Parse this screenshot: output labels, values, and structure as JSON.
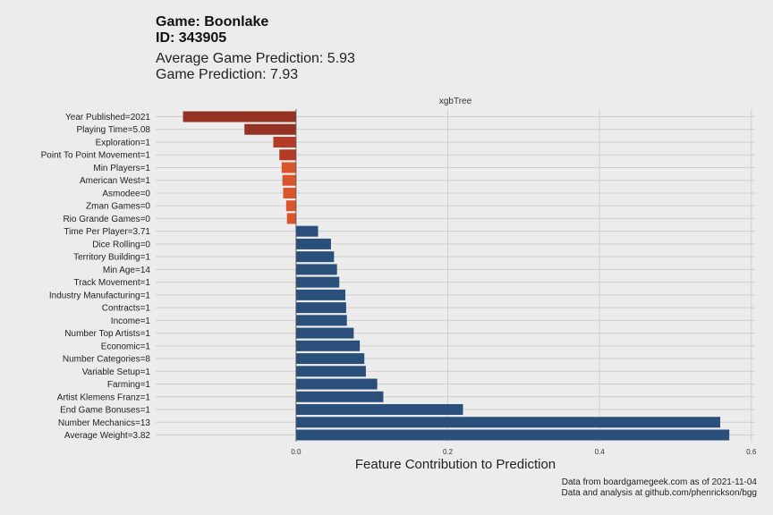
{
  "header": {
    "game": "Game: Boonlake",
    "id": "ID: 343905",
    "avg_prediction": "Average Game Prediction: 5.93",
    "prediction": "Game Prediction: 7.93"
  },
  "caption": {
    "line1": "Data from boardgamegeek.com as of 2021-11-04",
    "line2": "Data and analysis at github.com/phenrickson/bgg"
  },
  "colors": {
    "negative_strong": "#963224",
    "negative_mid": "#b43c26",
    "negative_light": "#d9552e",
    "positive": "#2a4f7a",
    "background": "#ececec",
    "grid": "#cfcfcf"
  },
  "chart_data": {
    "type": "bar",
    "orientation": "horizontal",
    "facet_label": "xgbTree",
    "xlabel": "Feature Contribution to Prediction",
    "ylabel": "",
    "xlim": [
      -0.185,
      0.605
    ],
    "xticks": [
      0.0,
      0.2,
      0.4,
      0.6
    ],
    "xtick_labels": [
      "0.0",
      "0.2",
      "0.4",
      "0.6"
    ],
    "categories": [
      "Year Published=2021",
      "Playing Time=5.08",
      "Exploration=1",
      "Point To Point Movement=1",
      "Min Players=1",
      "American West=1",
      "Asmodee=0",
      "Zman Games=0",
      "Rio Grande Games=0",
      "Time Per Player=3.71",
      "Dice Rolling=0",
      "Territory Building=1",
      "Min Age=14",
      "Track Movement=1",
      "Industry Manufacturing=1",
      "Contracts=1",
      "Income=1",
      "Number Top Artists=1",
      "Economic=1",
      "Number Categories=8",
      "Variable Setup=1",
      "Farming=1",
      "Artist Klemens Franz=1",
      "End Game Bonuses=1",
      "Number Mechanics=13",
      "Average Weight=3.82"
    ],
    "values": [
      -0.149,
      -0.068,
      -0.03,
      -0.022,
      -0.019,
      -0.018,
      -0.017,
      -0.013,
      -0.012,
      0.029,
      0.046,
      0.05,
      0.054,
      0.057,
      0.065,
      0.066,
      0.067,
      0.076,
      0.084,
      0.09,
      0.092,
      0.107,
      0.115,
      0.22,
      0.559,
      0.571
    ]
  }
}
